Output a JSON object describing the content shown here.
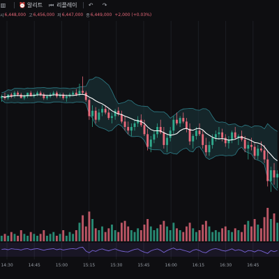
{
  "toolbar": {
    "items": [
      {
        "name": "chart-type-icon",
        "label": ""
      },
      {
        "name": "alert-icon",
        "label": "알리트"
      },
      {
        "name": "replay-icon",
        "label": "리플레이"
      },
      {
        "name": "undo-icon",
        "label": ""
      },
      {
        "name": "redo-icon",
        "label": ""
      }
    ]
  },
  "legend": {
    "open_key": "시",
    "open_value": "6,448,000",
    "high_key": "고",
    "high_value": "6,456,000",
    "low_key": "저",
    "low_value": "6,447,000",
    "close_key": "종",
    "close_value": "6,449,000",
    "change": "+2,000 (+0.03%)"
  },
  "colors": {
    "up": "#2fa98c",
    "down": "#e9697a",
    "ma": "#ffffff",
    "band_fill": "#1b3a40",
    "band_line": "#2e7f8a",
    "rsi": "#7b66d9",
    "background": "#0e0e11"
  },
  "chart_data": {
    "type": "candlestick",
    "x_ticks": [
      "14:30",
      "14:45",
      "15:00",
      "15:15",
      "15:30",
      "15:45",
      "16:00",
      "16:15",
      "16:30",
      "16:45"
    ],
    "candles": [
      [
        54,
        56,
        52,
        55
      ],
      [
        55,
        57,
        53,
        54
      ],
      [
        54,
        56,
        53,
        56
      ],
      [
        56,
        57,
        54,
        55
      ],
      [
        55,
        58,
        54,
        57
      ],
      [
        57,
        58,
        55,
        56
      ],
      [
        56,
        57,
        54,
        54
      ],
      [
        54,
        56,
        53,
        55
      ],
      [
        55,
        57,
        54,
        57
      ],
      [
        57,
        58,
        55,
        55
      ],
      [
        55,
        57,
        54,
        56
      ],
      [
        56,
        58,
        55,
        57
      ],
      [
        57,
        58,
        55,
        56
      ],
      [
        56,
        57,
        53,
        54
      ],
      [
        54,
        56,
        53,
        55
      ],
      [
        55,
        57,
        54,
        56
      ],
      [
        56,
        58,
        55,
        57
      ],
      [
        57,
        58,
        54,
        55
      ],
      [
        55,
        57,
        54,
        56
      ],
      [
        56,
        57,
        53,
        54
      ],
      [
        54,
        56,
        52,
        55
      ],
      [
        55,
        57,
        54,
        56
      ],
      [
        56,
        58,
        55,
        57
      ],
      [
        57,
        59,
        55,
        56
      ],
      [
        56,
        62,
        55,
        58
      ],
      [
        58,
        66,
        56,
        57
      ],
      [
        57,
        58,
        52,
        53
      ],
      [
        53,
        54,
        42,
        44
      ],
      [
        44,
        50,
        38,
        47
      ],
      [
        47,
        49,
        40,
        42
      ],
      [
        42,
        48,
        41,
        46
      ],
      [
        46,
        50,
        44,
        48
      ],
      [
        48,
        50,
        45,
        46
      ],
      [
        46,
        48,
        42,
        43
      ],
      [
        43,
        46,
        40,
        44
      ],
      [
        44,
        48,
        42,
        47
      ],
      [
        47,
        49,
        44,
        45
      ],
      [
        45,
        47,
        40,
        41
      ],
      [
        41,
        44,
        36,
        38
      ],
      [
        38,
        41,
        34,
        36
      ],
      [
        36,
        40,
        33,
        38
      ],
      [
        38,
        42,
        36,
        40
      ],
      [
        40,
        44,
        38,
        42
      ],
      [
        42,
        45,
        38,
        39
      ],
      [
        39,
        42,
        33,
        34
      ],
      [
        34,
        37,
        25,
        27
      ],
      [
        27,
        33,
        24,
        31
      ],
      [
        31,
        36,
        29,
        34
      ],
      [
        34,
        40,
        32,
        38
      ],
      [
        38,
        42,
        34,
        35
      ],
      [
        35,
        38,
        26,
        28
      ],
      [
        28,
        34,
        24,
        32
      ],
      [
        32,
        38,
        30,
        36
      ],
      [
        36,
        44,
        34,
        42
      ],
      [
        42,
        46,
        39,
        40
      ],
      [
        40,
        44,
        38,
        43
      ],
      [
        43,
        46,
        40,
        41
      ],
      [
        41,
        43,
        35,
        37
      ],
      [
        37,
        40,
        28,
        30
      ],
      [
        30,
        34,
        26,
        33
      ],
      [
        33,
        38,
        31,
        36
      ],
      [
        36,
        40,
        33,
        34
      ],
      [
        34,
        36,
        26,
        28
      ],
      [
        28,
        32,
        22,
        24
      ],
      [
        24,
        30,
        22,
        28
      ],
      [
        28,
        34,
        26,
        32
      ],
      [
        32,
        36,
        30,
        34
      ],
      [
        34,
        38,
        31,
        35
      ],
      [
        35,
        37,
        30,
        32
      ],
      [
        32,
        34,
        27,
        29
      ],
      [
        29,
        33,
        26,
        31
      ],
      [
        31,
        36,
        29,
        35
      ],
      [
        35,
        38,
        31,
        32
      ],
      [
        32,
        34,
        28,
        33
      ],
      [
        33,
        36,
        30,
        31
      ],
      [
        31,
        33,
        24,
        26
      ],
      [
        26,
        30,
        20,
        28
      ],
      [
        28,
        32,
        25,
        27
      ],
      [
        27,
        29,
        20,
        22
      ],
      [
        22,
        28,
        20,
        26
      ],
      [
        26,
        30,
        24,
        25
      ],
      [
        25,
        28,
        18,
        20
      ],
      [
        20,
        25,
        5,
        8
      ],
      [
        8,
        16,
        2,
        14
      ],
      [
        14,
        18,
        6,
        10
      ],
      [
        10,
        14,
        4,
        12
      ]
    ],
    "volume": [
      3,
      4,
      3,
      5,
      4,
      3,
      6,
      4,
      3,
      5,
      4,
      3,
      4,
      6,
      3,
      4,
      5,
      3,
      4,
      6,
      3,
      5,
      4,
      6,
      10,
      14,
      8,
      16,
      12,
      7,
      6,
      8,
      5,
      7,
      9,
      6,
      5,
      10,
      11,
      8,
      6,
      5,
      7,
      6,
      9,
      12,
      8,
      6,
      7,
      9,
      11,
      8,
      6,
      10,
      7,
      6,
      5,
      8,
      10,
      7,
      5,
      6,
      9,
      11,
      8,
      5,
      6,
      5,
      7,
      8,
      6,
      5,
      7,
      6,
      5,
      9,
      11,
      8,
      12,
      9,
      7,
      13,
      18,
      12,
      15,
      10
    ],
    "rsi": [
      52,
      55,
      50,
      57,
      54,
      53,
      48,
      55,
      58,
      50,
      55,
      58,
      52,
      46,
      52,
      55,
      58,
      50,
      55,
      48,
      52,
      56,
      58,
      54,
      65,
      68,
      40,
      28,
      45,
      38,
      50,
      56,
      48,
      42,
      50,
      56,
      46,
      40,
      36,
      34,
      44,
      52,
      56,
      42,
      32,
      26,
      42,
      50,
      56,
      46,
      30,
      44,
      54,
      62,
      50,
      54,
      46,
      40,
      32,
      46,
      52,
      44,
      32,
      28,
      44,
      54,
      58,
      52,
      44,
      40,
      48,
      56,
      44,
      50,
      44,
      32,
      44,
      42,
      34,
      46,
      42,
      32,
      22,
      44,
      36,
      44
    ]
  }
}
